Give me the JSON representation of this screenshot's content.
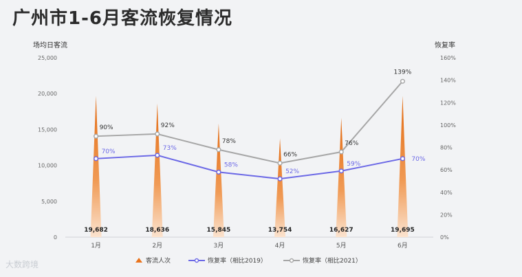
{
  "title": "广州市1-6月客流恢复情况",
  "watermark": "大数跨境",
  "chart_data": {
    "type": "bar+line",
    "categories": [
      "1月",
      "2月",
      "3月",
      "4月",
      "5月",
      "6月"
    ],
    "y_left": {
      "label": "场均日客流",
      "range": [
        0,
        25000
      ],
      "ticks": [
        "0",
        "5,000",
        "10,000",
        "15,000",
        "20,000",
        "25,000"
      ]
    },
    "y_right": {
      "label": "恢复率",
      "range": [
        0,
        160
      ],
      "ticks": [
        "0%",
        "20%",
        "40%",
        "60%",
        "80%",
        "100%",
        "120%",
        "140%",
        "160%"
      ]
    },
    "series": [
      {
        "name": "客流人次",
        "type": "bar",
        "axis": "left",
        "values": [
          19682,
          18636,
          15845,
          13754,
          16627,
          19695
        ],
        "labels": [
          "19,682",
          "18,636",
          "15,845",
          "13,754",
          "16,627",
          "19,695"
        ],
        "color": "#e9731c"
      },
      {
        "name": "恢复率（相比2019）",
        "type": "line",
        "axis": "right",
        "values": [
          70,
          73,
          58,
          52,
          59,
          70
        ],
        "labels": [
          "70%",
          "73%",
          "58%",
          "52%",
          "59%",
          "70%"
        ],
        "color": "#6b68e6"
      },
      {
        "name": "恢复率（相比2021）",
        "type": "line",
        "axis": "right",
        "values": [
          90,
          92,
          78,
          66,
          76,
          139
        ],
        "labels": [
          "90%",
          "92%",
          "78%",
          "66%",
          "76%",
          "139%"
        ],
        "color": "#a6a6a6"
      }
    ],
    "legend": "bottom",
    "grid": false
  }
}
